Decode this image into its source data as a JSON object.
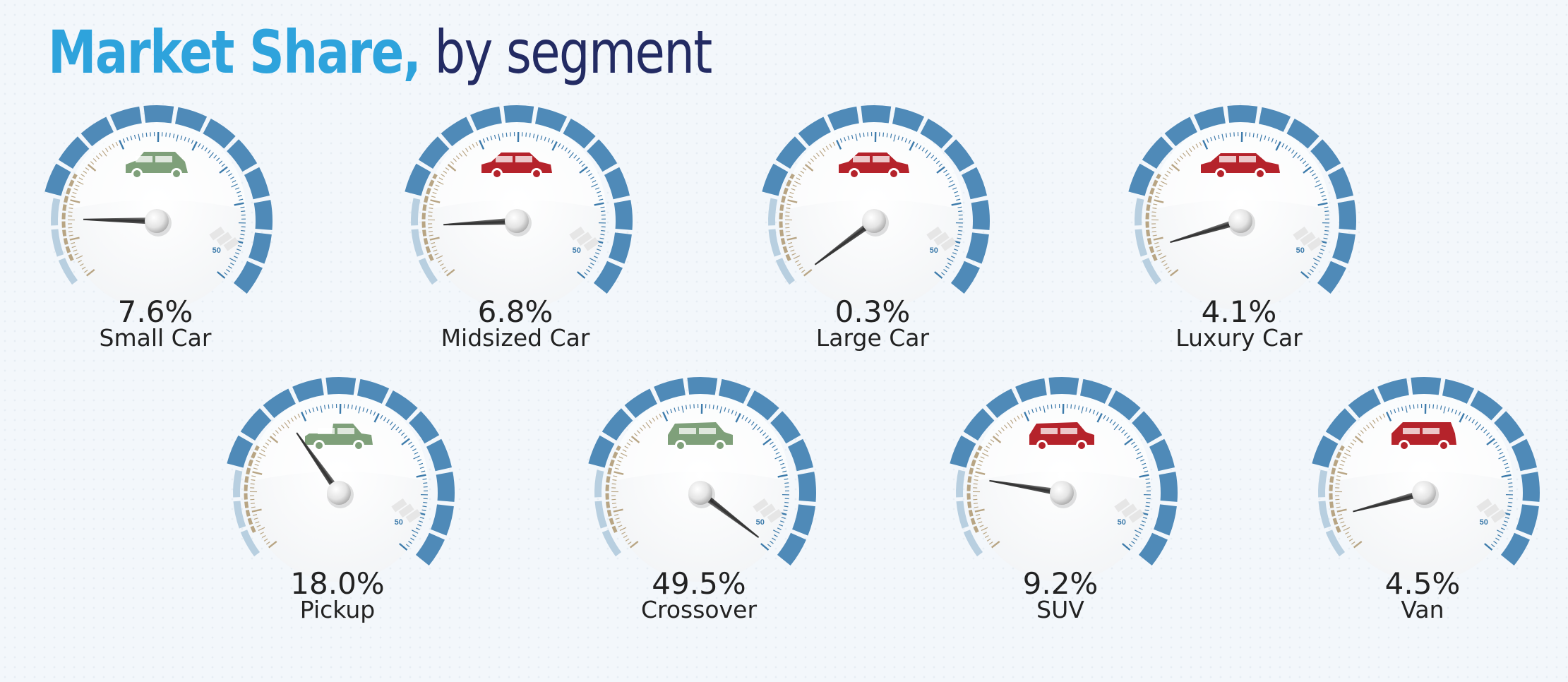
{
  "title": {
    "main": "Market Share,",
    "sub": " by segment"
  },
  "colors": {
    "title_main": "#2ea3dc",
    "title_sub": "#232b63",
    "band_blue": "#4f8ab8",
    "band_light": "#b8cfe0",
    "tick_tan": "#b8a584",
    "tick_blue": "#3d7bab",
    "car_green": "#7fa07a",
    "car_red": "#b5232b"
  },
  "chart_data": {
    "type": "gauge",
    "title": "Market Share, by segment",
    "unit": "%",
    "scale_max": 50,
    "scale_max_label": "50",
    "segments": [
      {
        "name": "Small Car",
        "value": 7.6,
        "value_label": "7.6%",
        "icon": "compact-hatchback-car-icon",
        "icon_color": "green"
      },
      {
        "name": "Midsized Car",
        "value": 6.8,
        "value_label": "6.8%",
        "icon": "sedan-car-icon",
        "icon_color": "red"
      },
      {
        "name": "Large Car",
        "value": 0.3,
        "value_label": "0.3%",
        "icon": "large-sedan-car-icon",
        "icon_color": "red"
      },
      {
        "name": "Luxury Car",
        "value": 4.1,
        "value_label": "4.1%",
        "icon": "luxury-sedan-car-icon",
        "icon_color": "red"
      },
      {
        "name": "Pickup",
        "value": 18.0,
        "value_label": "18.0%",
        "icon": "pickup-truck-icon",
        "icon_color": "green"
      },
      {
        "name": "Crossover",
        "value": 49.5,
        "value_label": "49.5%",
        "icon": "crossover-suv-icon",
        "icon_color": "green"
      },
      {
        "name": "SUV",
        "value": 9.2,
        "value_label": "9.2%",
        "icon": "suv-icon",
        "icon_color": "red"
      },
      {
        "name": "Van",
        "value": 4.5,
        "value_label": "4.5%",
        "icon": "minivan-icon",
        "icon_color": "red"
      }
    ]
  }
}
